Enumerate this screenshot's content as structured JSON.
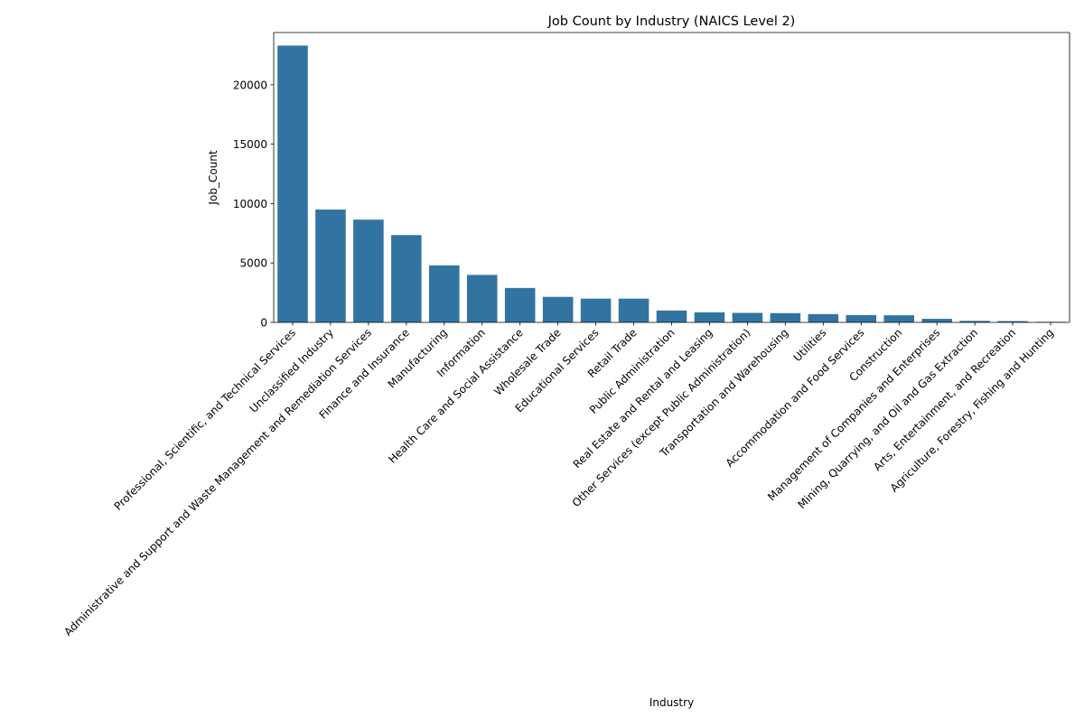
{
  "chart_data": {
    "type": "bar",
    "title": "Job Count by Industry (NAICS Level 2)",
    "xlabel": "Industry",
    "ylabel": "Job_Count",
    "ylim": [
      0,
      24400
    ],
    "yticks": [
      0,
      5000,
      10000,
      15000,
      20000
    ],
    "grid": false,
    "bar_color": "#3274a1",
    "categories": [
      "Professional, Scientific, and Technical Services",
      "Unclassified Industry",
      "Administrative and Support and Waste Management and Remediation Services",
      "Finance and Insurance",
      "Manufacturing",
      "Information",
      "Health Care and Social Assistance",
      "Wholesale Trade",
      "Educational Services",
      "Retail Trade",
      "Public Administration",
      "Real Estate and Rental and Leasing",
      "Other Services (except Public Administration)",
      "Transportation and Warehousing",
      "Utilities",
      "Accommodation and Food Services",
      "Construction",
      "Management of Companies and Enterprises",
      "Mining, Quarrying, and Oil and Gas Extraction",
      "Arts, Entertainment, and Recreation",
      "Agriculture, Forestry, Fishing and Hunting"
    ],
    "values": [
      23300,
      9500,
      8650,
      7350,
      4800,
      4000,
      2900,
      2150,
      2000,
      2000,
      1000,
      850,
      800,
      780,
      700,
      620,
      600,
      300,
      130,
      110,
      50
    ]
  }
}
